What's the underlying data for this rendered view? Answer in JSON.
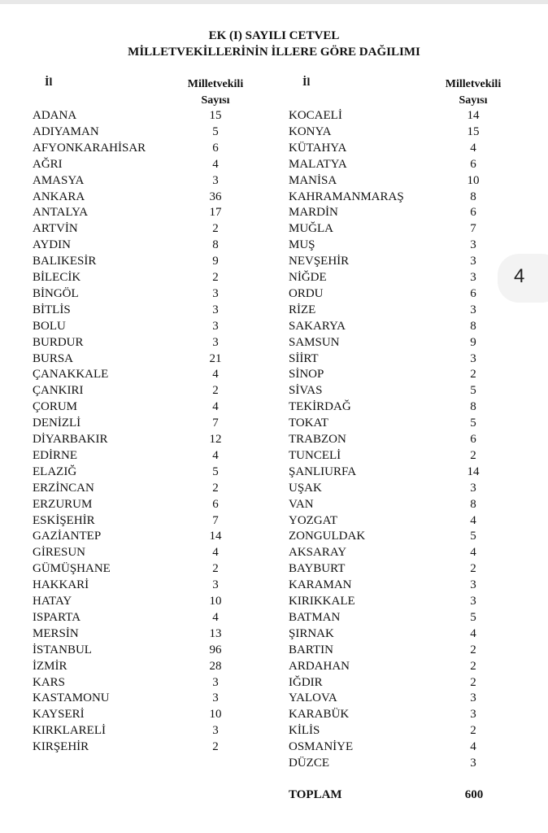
{
  "title_line1": "EK (I) SAYILI CETVEL",
  "title_line2": "MİLLETVEKİLLERİNİN İLLERE GÖRE DAĞILIMI",
  "headers": {
    "province": "İl",
    "count_line1": "Milletvekili",
    "count_line2": "Sayısı"
  },
  "left_column": [
    [
      "ADANA",
      "15"
    ],
    [
      "ADIYAMAN",
      "5"
    ],
    [
      "AFYONKARAHİSAR",
      "6"
    ],
    [
      "AĞRI",
      "4"
    ],
    [
      "AMASYA",
      "3"
    ],
    [
      "ANKARA",
      "36"
    ],
    [
      "ANTALYA",
      "17"
    ],
    [
      "ARTVİN",
      "2"
    ],
    [
      "AYDIN",
      "8"
    ],
    [
      "BALIKESİR",
      "9"
    ],
    [
      "BİLECİK",
      "2"
    ],
    [
      "BİNGÖL",
      "3"
    ],
    [
      "BİTLİS",
      "3"
    ],
    [
      "BOLU",
      "3"
    ],
    [
      "BURDUR",
      "3"
    ],
    [
      "BURSA",
      "21"
    ],
    [
      "ÇANAKKALE",
      "4"
    ],
    [
      "ÇANKIRI",
      "2"
    ],
    [
      "ÇORUM",
      "4"
    ],
    [
      "DENİZLİ",
      "7"
    ],
    [
      "DİYARBAKIR",
      "12"
    ],
    [
      "EDİRNE",
      "4"
    ],
    [
      "ELAZIĞ",
      "5"
    ],
    [
      "ERZİNCAN",
      "2"
    ],
    [
      "ERZURUM",
      "6"
    ],
    [
      "ESKİŞEHİR",
      "7"
    ],
    [
      "GAZİANTEP",
      "14"
    ],
    [
      "GİRESUN",
      "4"
    ],
    [
      "GÜMÜŞHANE",
      "2"
    ],
    [
      "HAKKARİ",
      "3"
    ],
    [
      "HATAY",
      "10"
    ],
    [
      "ISPARTA",
      "4"
    ],
    [
      "MERSİN",
      "13"
    ],
    [
      "İSTANBUL",
      "96"
    ],
    [
      "İZMİR",
      "28"
    ],
    [
      "KARS",
      "3"
    ],
    [
      "KASTAMONU",
      "3"
    ],
    [
      "KAYSERİ",
      "10"
    ],
    [
      "KIRKLARELİ",
      "3"
    ],
    [
      "KIRŞEHİR",
      "2"
    ]
  ],
  "right_column": [
    [
      "KOCAELİ",
      "14"
    ],
    [
      "KONYA",
      "15"
    ],
    [
      "KÜTAHYA",
      "4"
    ],
    [
      "MALATYA",
      "6"
    ],
    [
      "MANİSA",
      "10"
    ],
    [
      "KAHRAMANMARAŞ",
      "8"
    ],
    [
      "MARDİN",
      "6"
    ],
    [
      "MUĞLA",
      "7"
    ],
    [
      "MUŞ",
      "3"
    ],
    [
      "NEVŞEHİR",
      "3"
    ],
    [
      "NİĞDE",
      "3"
    ],
    [
      "ORDU",
      "6"
    ],
    [
      "RİZE",
      "3"
    ],
    [
      "SAKARYA",
      "8"
    ],
    [
      "SAMSUN",
      "9"
    ],
    [
      "SİİRT",
      "3"
    ],
    [
      "SİNOP",
      "2"
    ],
    [
      "SİVAS",
      "5"
    ],
    [
      "TEKİRDAĞ",
      "8"
    ],
    [
      "TOKAT",
      "5"
    ],
    [
      "TRABZON",
      "6"
    ],
    [
      "TUNCELİ",
      "2"
    ],
    [
      "ŞANLIURFA",
      "14"
    ],
    [
      "UŞAK",
      "3"
    ],
    [
      "VAN",
      "8"
    ],
    [
      "YOZGAT",
      "4"
    ],
    [
      "ZONGULDAK",
      "5"
    ],
    [
      "AKSARAY",
      "4"
    ],
    [
      "BAYBURT",
      "2"
    ],
    [
      "KARAMAN",
      "3"
    ],
    [
      "KIRIKKALE",
      "3"
    ],
    [
      "BATMAN",
      "5"
    ],
    [
      "ŞIRNAK",
      "4"
    ],
    [
      "BARTIN",
      "2"
    ],
    [
      "ARDAHAN",
      "2"
    ],
    [
      "IĞDIR",
      "2"
    ],
    [
      "YALOVA",
      "3"
    ],
    [
      "KARABÜK",
      "3"
    ],
    [
      "KİLİS",
      "2"
    ],
    [
      "OSMANİYE",
      "4"
    ],
    [
      "DÜZCE",
      "3"
    ]
  ],
  "total": {
    "label": "TOPLAM",
    "value": "600"
  },
  "page_indicator": "4"
}
